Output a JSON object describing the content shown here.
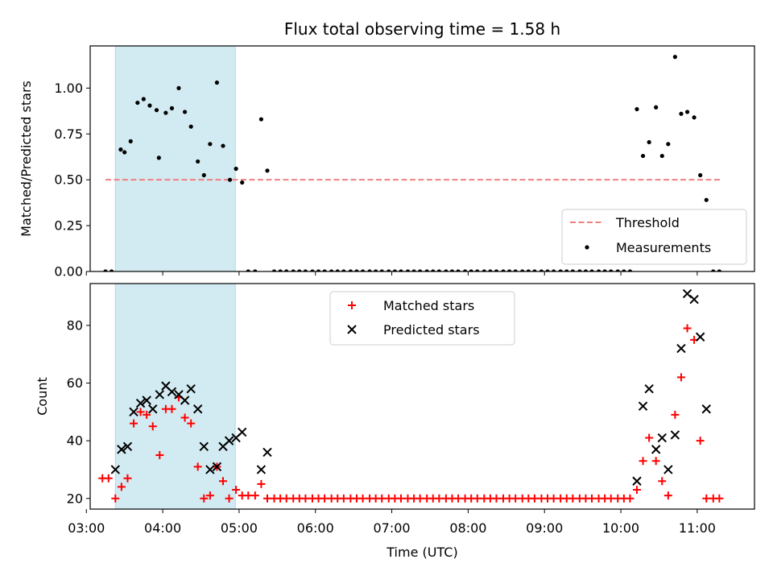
{
  "colors": {
    "threshold": "#f08080",
    "measurement": "#000000",
    "matched": "#ff0000",
    "predicted": "#000000",
    "shade": "#add8e6"
  },
  "chart_data": [
    {
      "type": "scatter",
      "title": "Flux total observing time = 1.58 h",
      "xlabel": "",
      "ylabel": "Matched/Predicted stars",
      "xlim": [
        3.05,
        11.75
      ],
      "ylim": [
        0,
        1.23
      ],
      "yticks": [
        0.0,
        0.25,
        0.5,
        0.75,
        1.0
      ],
      "ytick_labels": [
        "0.00",
        "0.25",
        "0.50",
        "0.75",
        "1.00"
      ],
      "shaded_interval": [
        3.38,
        4.95
      ],
      "threshold": {
        "name": "Threshold",
        "value": 0.5,
        "x_range": [
          3.25,
          11.3
        ]
      },
      "legend_position": "lower-right",
      "series": [
        {
          "name": "Measurements",
          "marker": "dot",
          "points": [
            [
              3.25,
              0.0
            ],
            [
              3.33,
              0.0
            ],
            [
              3.45,
              0.665
            ],
            [
              3.5,
              0.65
            ],
            [
              3.58,
              0.71
            ],
            [
              3.67,
              0.92
            ],
            [
              3.75,
              0.94
            ],
            [
              3.83,
              0.905
            ],
            [
              3.92,
              0.88
            ],
            [
              3.95,
              0.62
            ],
            [
              4.04,
              0.865
            ],
            [
              4.12,
              0.89
            ],
            [
              4.21,
              1.0
            ],
            [
              4.29,
              0.87
            ],
            [
              4.37,
              0.79
            ],
            [
              4.46,
              0.6
            ],
            [
              4.54,
              0.525
            ],
            [
              4.62,
              0.695
            ],
            [
              4.71,
              1.03
            ],
            [
              4.79,
              0.685
            ],
            [
              4.88,
              0.5
            ],
            [
              4.96,
              0.56
            ],
            [
              5.04,
              0.485
            ],
            [
              5.12,
              0.0
            ],
            [
              5.21,
              0.0
            ],
            [
              5.29,
              0.83
            ],
            [
              5.37,
              0.55
            ],
            [
              5.46,
              0.0
            ],
            [
              5.54,
              0.0
            ],
            [
              5.62,
              0.0
            ],
            [
              5.71,
              0.0
            ],
            [
              5.79,
              0.0
            ],
            [
              5.87,
              0.0
            ],
            [
              5.96,
              0.0
            ],
            [
              6.04,
              0.0
            ],
            [
              6.12,
              0.0
            ],
            [
              6.21,
              0.0
            ],
            [
              6.29,
              0.0
            ],
            [
              6.37,
              0.0
            ],
            [
              6.46,
              0.0
            ],
            [
              6.54,
              0.0
            ],
            [
              6.62,
              0.0
            ],
            [
              6.71,
              0.0
            ],
            [
              6.79,
              0.0
            ],
            [
              6.87,
              0.0
            ],
            [
              6.96,
              0.0
            ],
            [
              7.04,
              0.0
            ],
            [
              7.12,
              0.0
            ],
            [
              7.21,
              0.0
            ],
            [
              7.29,
              0.0
            ],
            [
              7.37,
              0.0
            ],
            [
              7.46,
              0.0
            ],
            [
              7.54,
              0.0
            ],
            [
              7.62,
              0.0
            ],
            [
              7.71,
              0.0
            ],
            [
              7.79,
              0.0
            ],
            [
              7.87,
              0.0
            ],
            [
              7.96,
              0.0
            ],
            [
              8.04,
              0.0
            ],
            [
              8.12,
              0.0
            ],
            [
              8.21,
              0.0
            ],
            [
              8.29,
              0.0
            ],
            [
              8.37,
              0.0
            ],
            [
              8.46,
              0.0
            ],
            [
              8.54,
              0.0
            ],
            [
              8.62,
              0.0
            ],
            [
              8.71,
              0.0
            ],
            [
              8.79,
              0.0
            ],
            [
              8.87,
              0.0
            ],
            [
              8.96,
              0.0
            ],
            [
              9.04,
              0.0
            ],
            [
              9.12,
              0.0
            ],
            [
              9.21,
              0.0
            ],
            [
              9.29,
              0.0
            ],
            [
              9.37,
              0.0
            ],
            [
              9.46,
              0.0
            ],
            [
              9.54,
              0.0
            ],
            [
              9.62,
              0.0
            ],
            [
              9.71,
              0.0
            ],
            [
              9.79,
              0.0
            ],
            [
              9.87,
              0.0
            ],
            [
              9.96,
              0.0
            ],
            [
              10.04,
              0.0
            ],
            [
              10.12,
              0.0
            ],
            [
              10.21,
              0.885
            ],
            [
              10.29,
              0.63
            ],
            [
              10.37,
              0.705
            ],
            [
              10.46,
              0.895
            ],
            [
              10.54,
              0.63
            ],
            [
              10.62,
              0.695
            ],
            [
              10.71,
              1.17
            ],
            [
              10.79,
              0.86
            ],
            [
              10.87,
              0.87
            ],
            [
              10.96,
              0.84
            ],
            [
              11.04,
              0.525
            ],
            [
              11.12,
              0.39
            ],
            [
              11.21,
              0.0
            ],
            [
              11.29,
              0.0
            ]
          ]
        }
      ]
    },
    {
      "type": "scatter",
      "title": "",
      "xlabel": "Time (UTC)",
      "ylabel": "Count",
      "xlim": [
        3.05,
        11.75
      ],
      "ylim": [
        16.3,
        94.5
      ],
      "yticks": [
        20,
        40,
        60,
        80
      ],
      "ytick_labels": [
        "20",
        "40",
        "60",
        "80"
      ],
      "xticks": [
        3,
        4,
        5,
        6,
        7,
        8,
        9,
        10,
        11
      ],
      "xtick_labels": [
        "03:00",
        "04:00",
        "05:00",
        "06:00",
        "07:00",
        "08:00",
        "09:00",
        "10:00",
        "11:00"
      ],
      "shaded_interval": [
        3.38,
        4.95
      ],
      "legend_position": "upper-center",
      "series": [
        {
          "name": "Matched stars",
          "marker": "plus",
          "points": [
            [
              3.21,
              27
            ],
            [
              3.29,
              27
            ],
            [
              3.38,
              20
            ],
            [
              3.46,
              24
            ],
            [
              3.54,
              27
            ],
            [
              3.62,
              46
            ],
            [
              3.71,
              50
            ],
            [
              3.79,
              49
            ],
            [
              3.87,
              45
            ],
            [
              3.96,
              35
            ],
            [
              4.04,
              51
            ],
            [
              4.12,
              51
            ],
            [
              4.21,
              55
            ],
            [
              4.29,
              48
            ],
            [
              4.37,
              46
            ],
            [
              4.46,
              31
            ],
            [
              4.54,
              20
            ],
            [
              4.62,
              21
            ],
            [
              4.71,
              31
            ],
            [
              4.79,
              26
            ],
            [
              4.87,
              20
            ],
            [
              4.96,
              23
            ],
            [
              5.04,
              21
            ],
            [
              5.12,
              21
            ],
            [
              5.21,
              21
            ],
            [
              5.29,
              25
            ],
            [
              5.37,
              20
            ],
            [
              5.46,
              20
            ],
            [
              5.54,
              20
            ],
            [
              5.62,
              20
            ],
            [
              5.71,
              20
            ],
            [
              5.79,
              20
            ],
            [
              5.87,
              20
            ],
            [
              5.96,
              20
            ],
            [
              6.04,
              20
            ],
            [
              6.12,
              20
            ],
            [
              6.21,
              20
            ],
            [
              6.29,
              20
            ],
            [
              6.37,
              20
            ],
            [
              6.46,
              20
            ],
            [
              6.54,
              20
            ],
            [
              6.62,
              20
            ],
            [
              6.71,
              20
            ],
            [
              6.79,
              20
            ],
            [
              6.87,
              20
            ],
            [
              6.96,
              20
            ],
            [
              7.04,
              20
            ],
            [
              7.12,
              20
            ],
            [
              7.21,
              20
            ],
            [
              7.29,
              20
            ],
            [
              7.37,
              20
            ],
            [
              7.46,
              20
            ],
            [
              7.54,
              20
            ],
            [
              7.62,
              20
            ],
            [
              7.71,
              20
            ],
            [
              7.79,
              20
            ],
            [
              7.87,
              20
            ],
            [
              7.96,
              20
            ],
            [
              8.04,
              20
            ],
            [
              8.12,
              20
            ],
            [
              8.21,
              20
            ],
            [
              8.29,
              20
            ],
            [
              8.37,
              20
            ],
            [
              8.46,
              20
            ],
            [
              8.54,
              20
            ],
            [
              8.62,
              20
            ],
            [
              8.71,
              20
            ],
            [
              8.79,
              20
            ],
            [
              8.87,
              20
            ],
            [
              8.96,
              20
            ],
            [
              9.04,
              20
            ],
            [
              9.12,
              20
            ],
            [
              9.21,
              20
            ],
            [
              9.29,
              20
            ],
            [
              9.37,
              20
            ],
            [
              9.46,
              20
            ],
            [
              9.54,
              20
            ],
            [
              9.62,
              20
            ],
            [
              9.71,
              20
            ],
            [
              9.79,
              20
            ],
            [
              9.87,
              20
            ],
            [
              9.96,
              20
            ],
            [
              10.04,
              20
            ],
            [
              10.12,
              20
            ],
            [
              10.21,
              23
            ],
            [
              10.29,
              33
            ],
            [
              10.37,
              41
            ],
            [
              10.46,
              33
            ],
            [
              10.54,
              26
            ],
            [
              10.62,
              21
            ],
            [
              10.71,
              49
            ],
            [
              10.79,
              62
            ],
            [
              10.87,
              79
            ],
            [
              10.96,
              75
            ],
            [
              11.04,
              40
            ],
            [
              11.12,
              20
            ],
            [
              11.21,
              20
            ],
            [
              11.29,
              20
            ]
          ]
        },
        {
          "name": "Predicted stars",
          "marker": "x",
          "points": [
            [
              3.38,
              30
            ],
            [
              3.46,
              37
            ],
            [
              3.54,
              38
            ],
            [
              3.62,
              50
            ],
            [
              3.71,
              53
            ],
            [
              3.79,
              54
            ],
            [
              3.87,
              51
            ],
            [
              3.96,
              56
            ],
            [
              4.04,
              59
            ],
            [
              4.12,
              57
            ],
            [
              4.21,
              56
            ],
            [
              4.29,
              54
            ],
            [
              4.37,
              58
            ],
            [
              4.46,
              51
            ],
            [
              4.54,
              38
            ],
            [
              4.62,
              30
            ],
            [
              4.71,
              31
            ],
            [
              4.79,
              38
            ],
            [
              4.87,
              40
            ],
            [
              4.96,
              41
            ],
            [
              5.04,
              43
            ],
            [
              5.29,
              30
            ],
            [
              5.37,
              36
            ],
            [
              10.21,
              26
            ],
            [
              10.29,
              52
            ],
            [
              10.37,
              58
            ],
            [
              10.46,
              37
            ],
            [
              10.54,
              41
            ],
            [
              10.62,
              30
            ],
            [
              10.71,
              42
            ],
            [
              10.79,
              72
            ],
            [
              10.87,
              91
            ],
            [
              10.96,
              89
            ],
            [
              11.04,
              76
            ],
            [
              11.12,
              51
            ]
          ]
        }
      ]
    }
  ]
}
